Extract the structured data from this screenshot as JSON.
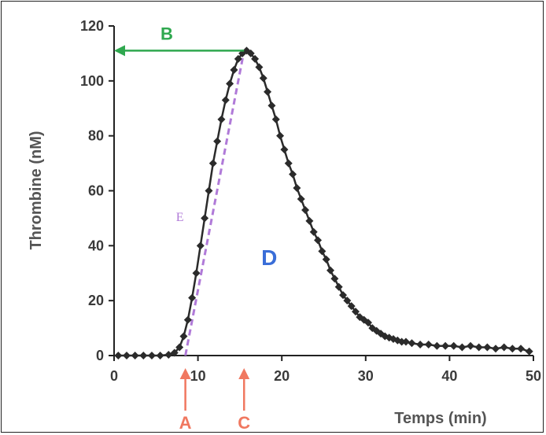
{
  "chart_data": {
    "type": "line",
    "xlabel": "Temps (min)",
    "ylabel": "Thrombine (nM)",
    "xlim": [
      0,
      50
    ],
    "ylim": [
      0,
      120
    ],
    "x_ticks": [
      "0",
      "10",
      "20",
      "30",
      "40",
      "50"
    ],
    "y_ticks": [
      "0",
      "20",
      "40",
      "60",
      "80",
      "100",
      "120"
    ],
    "grid": false,
    "series": [
      {
        "marker": "diamond",
        "color": "#2b2b2b",
        "points": [
          [
            0.5,
            0
          ],
          [
            1.5,
            0
          ],
          [
            2.5,
            0
          ],
          [
            3.5,
            0
          ],
          [
            4.5,
            0
          ],
          [
            5.5,
            0
          ],
          [
            6.5,
            0.3
          ],
          [
            7.2,
            1
          ],
          [
            7.8,
            3
          ],
          [
            8.3,
            7
          ],
          [
            8.8,
            13
          ],
          [
            9.3,
            21
          ],
          [
            9.8,
            30
          ],
          [
            10.3,
            40
          ],
          [
            10.8,
            50
          ],
          [
            11.3,
            60
          ],
          [
            11.8,
            70
          ],
          [
            12.3,
            78
          ],
          [
            12.8,
            86
          ],
          [
            13.3,
            93
          ],
          [
            13.8,
            99
          ],
          [
            14.3,
            104
          ],
          [
            14.8,
            108
          ],
          [
            15.3,
            110
          ],
          [
            15.8,
            111
          ],
          [
            16.3,
            110
          ],
          [
            16.8,
            108
          ],
          [
            17.3,
            105
          ],
          [
            17.8,
            101
          ],
          [
            18.3,
            96
          ],
          [
            18.8,
            91
          ],
          [
            19.3,
            86
          ],
          [
            19.8,
            80
          ],
          [
            20.3,
            75
          ],
          [
            20.8,
            70
          ],
          [
            21.3,
            66
          ],
          [
            21.8,
            61
          ],
          [
            22.3,
            57
          ],
          [
            22.8,
            53
          ],
          [
            23.3,
            49
          ],
          [
            23.8,
            45
          ],
          [
            24.3,
            42
          ],
          [
            24.8,
            38
          ],
          [
            25.3,
            35
          ],
          [
            25.8,
            31
          ],
          [
            26.3,
            28
          ],
          [
            26.8,
            25
          ],
          [
            27.3,
            22
          ],
          [
            27.8,
            20
          ],
          [
            28.3,
            18
          ],
          [
            28.8,
            16
          ],
          [
            29.3,
            14
          ],
          [
            29.8,
            13
          ],
          [
            30.3,
            12
          ],
          [
            30.8,
            10
          ],
          [
            31.3,
            9
          ],
          [
            31.8,
            8
          ],
          [
            32.3,
            7
          ],
          [
            32.8,
            6.5
          ],
          [
            33.3,
            6
          ],
          [
            33.8,
            5.5
          ],
          [
            34.3,
            5
          ],
          [
            34.8,
            5
          ],
          [
            35.5,
            4.5
          ],
          [
            36.5,
            4
          ],
          [
            37.5,
            4
          ],
          [
            38.5,
            3.5
          ],
          [
            39.5,
            3.5
          ],
          [
            40.5,
            3.5
          ],
          [
            41.5,
            3
          ],
          [
            42.5,
            3.5
          ],
          [
            43.5,
            3
          ],
          [
            44.5,
            3
          ],
          [
            45.5,
            2.5
          ],
          [
            46.5,
            3
          ],
          [
            47.5,
            2.5
          ],
          [
            48.5,
            2.5
          ],
          [
            49.5,
            1.5
          ]
        ]
      }
    ],
    "annotations": {
      "A": {
        "label": "A",
        "x": 8.5,
        "color": "#f07860"
      },
      "C": {
        "label": "C",
        "x": 15.5,
        "color": "#f07860"
      },
      "B": {
        "label": "B",
        "y": 111,
        "x_from": 0,
        "x_to": 15.5,
        "color": "#2fa84f"
      },
      "D": {
        "label": "D",
        "x": 18.5,
        "y": 33,
        "color": "#3a6ed8"
      },
      "E": {
        "label": "E",
        "x": 8.5,
        "y_from": 0,
        "x_to": 15.5,
        "y_to": 111,
        "label_x": 8.3,
        "label_y": 49,
        "color": "#b07ad8"
      }
    }
  }
}
